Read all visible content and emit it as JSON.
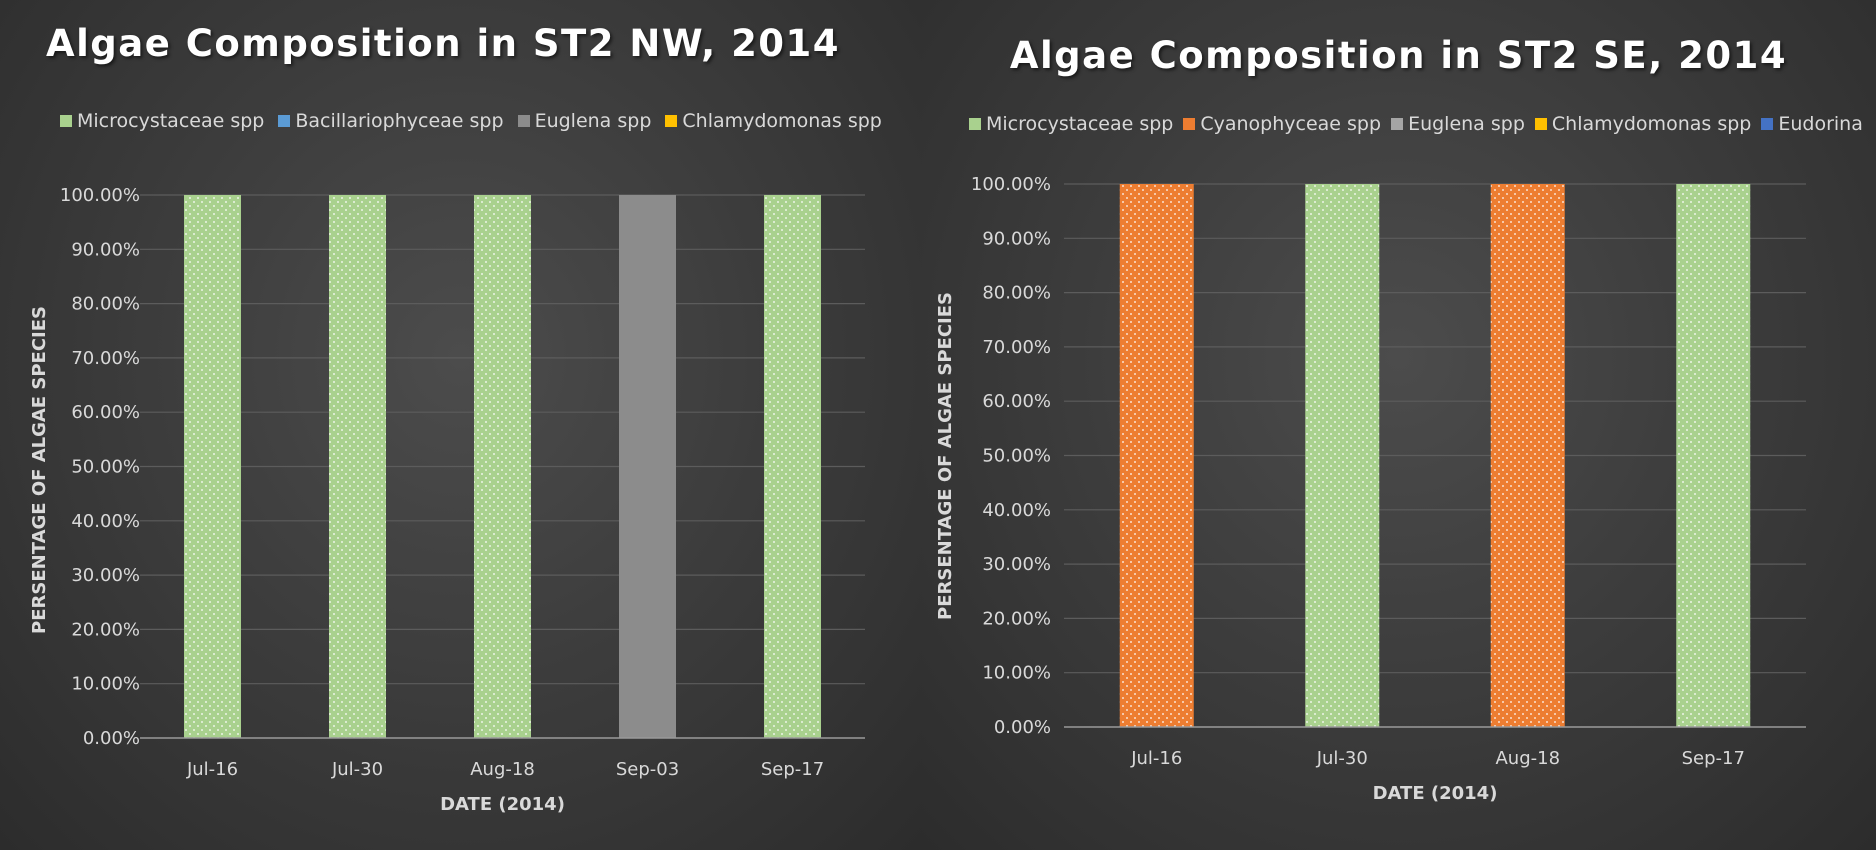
{
  "chart_data": [
    {
      "type": "bar",
      "title": "Algae Composition in ST2 NW, 2014",
      "xlabel": "DATE (2014)",
      "ylabel": "PERSENTAGE OF ALGAE SPECIES",
      "ylim": [
        0,
        1
      ],
      "y_tick_labels": [
        "0.00%",
        "10.00%",
        "20.00%",
        "30.00%",
        "40.00%",
        "50.00%",
        "60.00%",
        "70.00%",
        "80.00%",
        "90.00%",
        "100.00%"
      ],
      "grid": true,
      "legend_position": "top",
      "categories": [
        "Jul-16",
        "Jul-30",
        "Aug-18",
        "Sep-03",
        "Sep-17"
      ],
      "series": [
        {
          "name": "Microcystaceae spp",
          "color": "#a9d18e",
          "pattern": "dots",
          "values": [
            1,
            1,
            1,
            0,
            1
          ]
        },
        {
          "name": "Bacillariophyceae spp",
          "color": "#5b9bd5",
          "pattern": "none",
          "values": [
            0,
            0,
            0,
            0,
            0
          ]
        },
        {
          "name": "Euglena spp",
          "color": "#8c8c8c",
          "pattern": "none",
          "values": [
            0,
            0,
            0,
            1,
            0
          ]
        },
        {
          "name": "Chlamydomonas spp",
          "color": "#ffc000",
          "pattern": "none",
          "values": [
            0,
            0,
            0,
            0,
            0
          ]
        }
      ]
    },
    {
      "type": "bar",
      "title": "Algae Composition in ST2 SE, 2014",
      "xlabel": "DATE (2014)",
      "ylabel": "PERSENTAGE OF ALGAE SPECIES",
      "ylim": [
        0,
        1
      ],
      "y_tick_labels": [
        "0.00%",
        "10.00%",
        "20.00%",
        "30.00%",
        "40.00%",
        "50.00%",
        "60.00%",
        "70.00%",
        "80.00%",
        "90.00%",
        "100.00%"
      ],
      "grid": true,
      "legend_position": "top",
      "categories": [
        "Jul-16",
        "Jul-30",
        "Aug-18",
        "Sep-17"
      ],
      "series": [
        {
          "name": "Microcystaceae spp",
          "color": "#a9d18e",
          "pattern": "dots",
          "values": [
            0,
            1,
            0,
            1
          ]
        },
        {
          "name": "Cyanophyceae spp",
          "color": "#ed7d31",
          "pattern": "dots",
          "values": [
            1,
            0,
            1,
            0
          ]
        },
        {
          "name": "Euglena spp",
          "color": "#a5a5a5",
          "pattern": "none",
          "values": [
            0,
            0,
            0,
            0
          ]
        },
        {
          "name": "Chlamydomonas spp",
          "color": "#ffc000",
          "pattern": "none",
          "values": [
            0,
            0,
            0,
            0
          ]
        },
        {
          "name": "Eudorina",
          "color": "#4472c4",
          "pattern": "none",
          "values": [
            0,
            0,
            0,
            0
          ]
        }
      ]
    }
  ]
}
